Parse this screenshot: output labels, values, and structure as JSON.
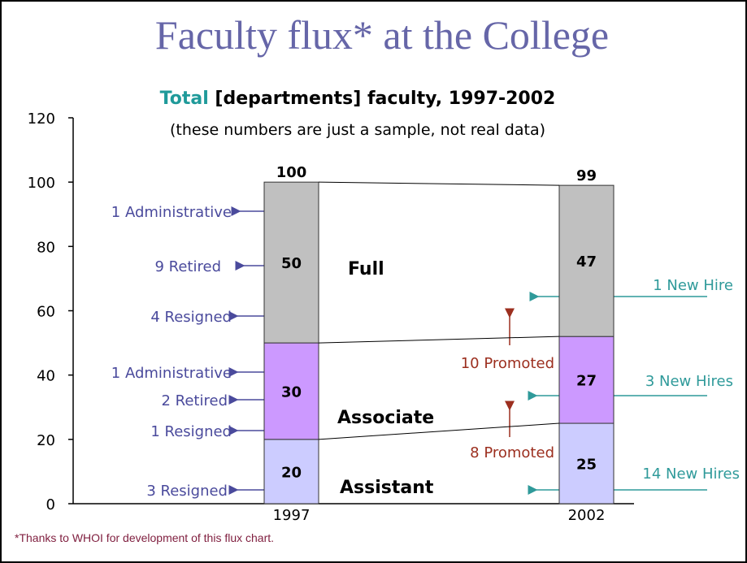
{
  "chart_data": {
    "type": "bar",
    "stacked": true,
    "title": "Faculty flux* at the College",
    "subtitle_highlight": "Total",
    "subtitle": "[departments] faculty, 1997-2002",
    "note": "(these numbers are just a sample, not real data)",
    "footnote": "*Thanks to WHOI for development of this flux chart.",
    "categories": [
      "1997",
      "2002"
    ],
    "series": [
      {
        "name": "Assistant",
        "color": "#ccccff",
        "values": [
          20,
          25
        ]
      },
      {
        "name": "Associate",
        "color": "#cc99ff",
        "values": [
          30,
          27
        ]
      },
      {
        "name": "Full",
        "color": "#c0c0c0",
        "values": [
          50,
          47
        ]
      }
    ],
    "totals": [
      100,
      99
    ],
    "ylim": [
      0,
      120
    ],
    "yticks": [
      0,
      20,
      40,
      60,
      80,
      100,
      120
    ],
    "annotations": {
      "left": [
        "1 Administrative",
        "9 Retired",
        "4 Resigned",
        "1 Administrative",
        "2 Retired",
        "1 Resigned",
        "3 Resigned"
      ],
      "right": [
        "1 New Hire",
        "3 New Hires",
        "14 New Hires"
      ],
      "promoted": [
        "10 Promoted",
        "8 Promoted"
      ]
    }
  }
}
